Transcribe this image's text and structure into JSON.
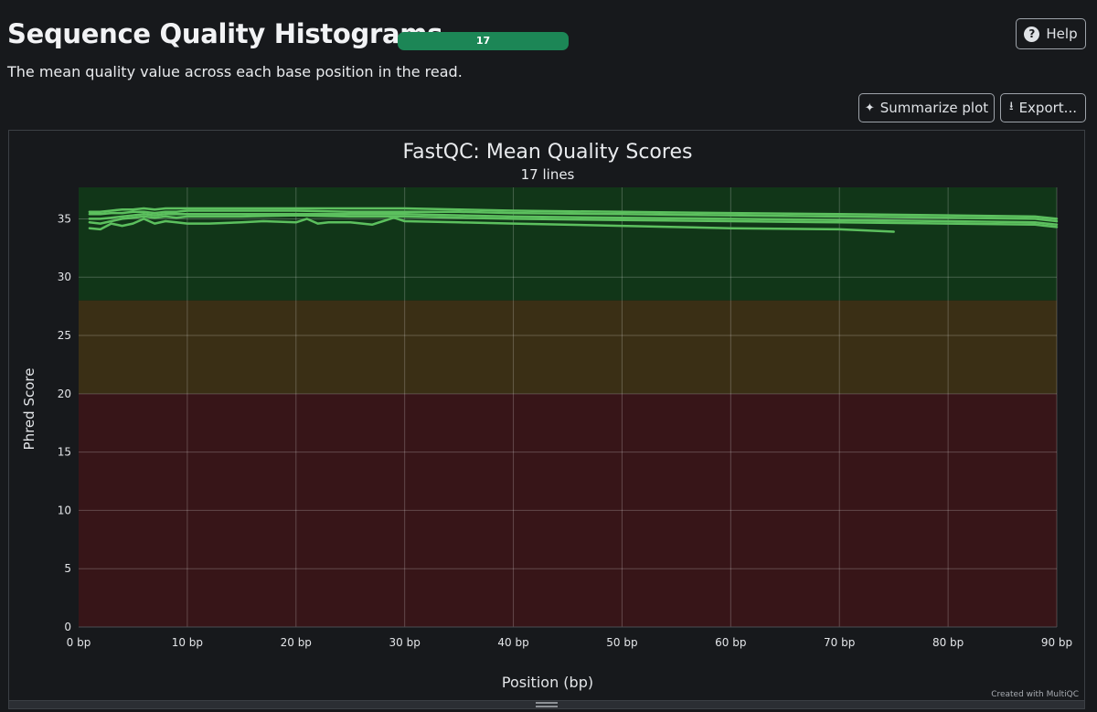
{
  "header": {
    "title": "Sequence Quality Histograms",
    "badge_count": "17",
    "help_label": "Help",
    "description": "The mean quality value across each base position in the read."
  },
  "toolbar": {
    "summarize_label": "Summarize plot",
    "export_label": "Export..."
  },
  "colors": {
    "good_zone": "#113618",
    "warn_zone": "#3a2f15",
    "fail_zone": "#371518",
    "line": "#5cc05e"
  },
  "chart_data": {
    "type": "line",
    "title": "FastQC: Mean Quality Scores",
    "subtitle": "17 lines",
    "xlabel": "Position (bp)",
    "ylabel": "Phred Score",
    "xlim": [
      0,
      90
    ],
    "ylim": [
      0,
      37.7
    ],
    "x_ticks": [
      0,
      10,
      20,
      30,
      40,
      50,
      60,
      70,
      80,
      90
    ],
    "x_tick_labels": [
      "0 bp",
      "10 bp",
      "20 bp",
      "30 bp",
      "40 bp",
      "50 bp",
      "60 bp",
      "70 bp",
      "80 bp",
      "90 bp"
    ],
    "y_ticks": [
      0,
      5,
      10,
      15,
      20,
      25,
      30,
      35
    ],
    "y_tick_labels": [
      "0",
      "5",
      "10",
      "15",
      "20",
      "25",
      "30",
      "35"
    ],
    "grid": true,
    "zones": [
      {
        "from": 28,
        "to": 37.7,
        "level": "good"
      },
      {
        "from": 20,
        "to": 28,
        "level": "warn"
      },
      {
        "from": 0,
        "to": 20,
        "level": "fail"
      }
    ],
    "series": [
      {
        "x": [
          1,
          2,
          3,
          4,
          5,
          6,
          7,
          8,
          9,
          10,
          15,
          20,
          25,
          30,
          35,
          40,
          50,
          60,
          70,
          80,
          88,
          90
        ],
        "values": [
          35.6,
          35.6,
          35.7,
          35.8,
          35.8,
          35.9,
          35.8,
          35.9,
          35.9,
          35.9,
          35.9,
          35.9,
          35.9,
          35.9,
          35.8,
          35.7,
          35.6,
          35.5,
          35.4,
          35.3,
          35.2,
          35.0
        ]
      },
      {
        "x": [
          1,
          2,
          3,
          4,
          5,
          6,
          7,
          8,
          9,
          10,
          15,
          20,
          25,
          30,
          35,
          40,
          50,
          60,
          70,
          80,
          88,
          90
        ],
        "values": [
          35.4,
          35.4,
          35.5,
          35.5,
          35.6,
          35.6,
          35.5,
          35.6,
          35.6,
          35.7,
          35.7,
          35.7,
          35.6,
          35.6,
          35.6,
          35.5,
          35.4,
          35.3,
          35.2,
          35.1,
          35.0,
          34.8
        ]
      },
      {
        "x": [
          1,
          2,
          3,
          4,
          5,
          6,
          7,
          8,
          9,
          10,
          15,
          20,
          25,
          30,
          35,
          40,
          50,
          60,
          70,
          80,
          88,
          90
        ],
        "values": [
          35.0,
          35.0,
          35.1,
          35.2,
          35.3,
          35.4,
          35.3,
          35.4,
          35.4,
          35.4,
          35.4,
          35.4,
          35.4,
          35.4,
          35.3,
          35.2,
          35.1,
          35.0,
          34.9,
          34.8,
          34.7,
          34.5
        ]
      },
      {
        "x": [
          1,
          2,
          3,
          4,
          5,
          6,
          7,
          8,
          9,
          10,
          15,
          20,
          25,
          30,
          35,
          40,
          50,
          60,
          70,
          80,
          88,
          90
        ],
        "values": [
          34.7,
          34.6,
          34.8,
          35.0,
          35.1,
          35.2,
          35.1,
          35.2,
          35.1,
          35.2,
          35.2,
          35.3,
          35.2,
          35.2,
          35.1,
          35.0,
          34.9,
          34.8,
          34.7,
          34.6,
          34.5,
          34.3
        ]
      },
      {
        "x": [
          1,
          2,
          3,
          4,
          5,
          6,
          7,
          8,
          9,
          10,
          12,
          15,
          17,
          20,
          21,
          22,
          23,
          25,
          27,
          28,
          29,
          30,
          35,
          40,
          50,
          60,
          70,
          75
        ],
        "values": [
          34.2,
          34.1,
          34.6,
          34.4,
          34.6,
          35.0,
          34.6,
          34.8,
          34.7,
          34.6,
          34.6,
          34.7,
          34.8,
          34.7,
          35.0,
          34.6,
          34.7,
          34.7,
          34.5,
          34.8,
          35.1,
          34.8,
          34.7,
          34.6,
          34.4,
          34.2,
          34.1,
          33.9
        ]
      }
    ]
  },
  "credit": "Created with MultiQC"
}
